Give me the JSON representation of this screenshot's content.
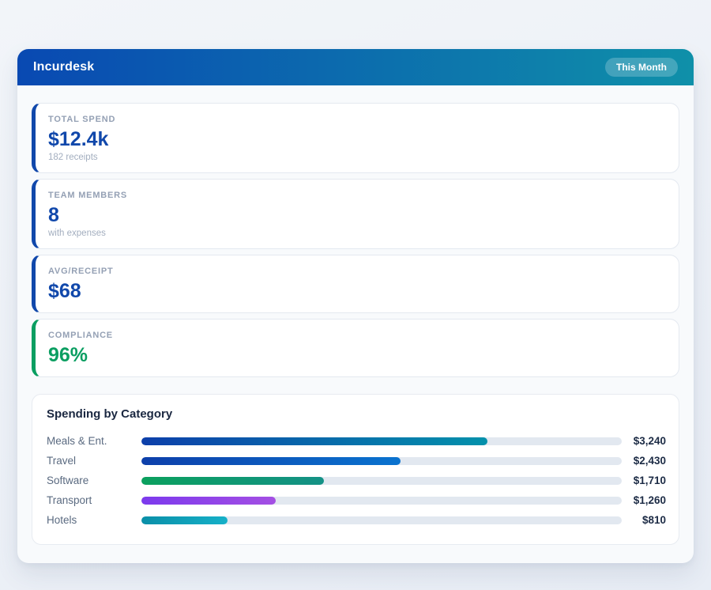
{
  "header": {
    "title": "Incurdesk",
    "badge": "This Month",
    "gradient_from": "#0949b2",
    "gradient_to": "#0f90a9"
  },
  "stats": [
    {
      "label": "TOTAL SPEND",
      "value": "$12.4k",
      "sub": "182 receipts",
      "accent_color": "#1148ab",
      "value_color": "#1148ab"
    },
    {
      "label": "TEAM MEMBERS",
      "value": "8",
      "sub": "with expenses",
      "accent_color": "#1148ab",
      "value_color": "#1148ab"
    },
    {
      "label": "AVG/RECEIPT",
      "value": "$68",
      "sub": "",
      "accent_color": "#1148ab",
      "value_color": "#1148ab"
    },
    {
      "label": "COMPLIANCE",
      "value": "96%",
      "sub": "",
      "accent_color": "#0a9e61",
      "value_color": "#0a9e61"
    }
  ],
  "chart": {
    "title": "Spending by Category",
    "track_color": "#e2e8f0",
    "rows": [
      {
        "label": "Meals & Ent.",
        "value": "$3,240",
        "pct": 72,
        "color_from": "#0d3faa",
        "color_to": "#0391ab"
      },
      {
        "label": "Travel",
        "value": "$2,430",
        "pct": 54,
        "color_from": "#0d3faa",
        "color_to": "#0a73cf"
      },
      {
        "label": "Software",
        "value": "$1,710",
        "pct": 38,
        "color_from": "#0ba05e",
        "color_to": "#149186"
      },
      {
        "label": "Transport",
        "value": "$1,260",
        "pct": 28,
        "color_from": "#7c3aed",
        "color_to": "#a44fe3"
      },
      {
        "label": "Hotels",
        "value": "$810",
        "pct": 18,
        "color_from": "#0a8fa8",
        "color_to": "#16b0c8"
      }
    ]
  },
  "chart_data": {
    "type": "bar",
    "orientation": "horizontal",
    "title": "Spending by Category",
    "categories": [
      "Meals & Ent.",
      "Travel",
      "Software",
      "Transport",
      "Hotels"
    ],
    "values": [
      3240,
      2430,
      1710,
      1260,
      810
    ],
    "value_labels": [
      "$3,240",
      "$2,430",
      "$1,710",
      "$1,260",
      "$810"
    ],
    "xlim": [
      0,
      4500
    ],
    "grid": false,
    "legend": false
  }
}
